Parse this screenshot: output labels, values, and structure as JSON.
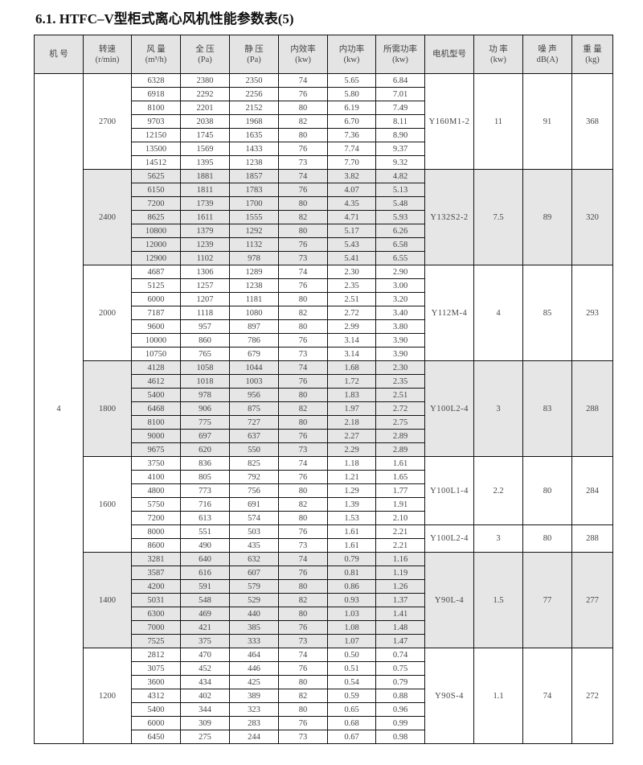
{
  "title": "6.1. HTFC–V型柜式离心风机性能参数表(5)",
  "headers": [
    [
      "机  号",
      ""
    ],
    [
      "转速",
      "(r/min)"
    ],
    [
      "风  量",
      "(m³/h)"
    ],
    [
      "全  压",
      "(Pa)"
    ],
    [
      "静  压",
      "(Pa)"
    ],
    [
      "内效率",
      "(kw)"
    ],
    [
      "内功率",
      "(kw)"
    ],
    [
      "所需功率",
      "(kw)"
    ],
    [
      "电机型号",
      ""
    ],
    [
      "功  率",
      "(kw)"
    ],
    [
      "噪  声",
      "dB(A)"
    ],
    [
      "重  量",
      "(kg)"
    ]
  ],
  "machine_no": "4",
  "shaded_color": "#e6e6e6",
  "groups": [
    {
      "speed": "2700",
      "shaded": false,
      "rows": [
        [
          "6328",
          "2380",
          "2350",
          "74",
          "5.65",
          "6.84"
        ],
        [
          "6918",
          "2292",
          "2256",
          "76",
          "5.80",
          "7.01"
        ],
        [
          "8100",
          "2201",
          "2152",
          "80",
          "6.19",
          "7.49"
        ],
        [
          "9703",
          "2038",
          "1968",
          "82",
          "6.70",
          "8.11"
        ],
        [
          "12150",
          "1745",
          "1635",
          "80",
          "7.36",
          "8.90"
        ],
        [
          "13500",
          "1569",
          "1433",
          "76",
          "7.74",
          "9.37"
        ],
        [
          "14512",
          "1395",
          "1238",
          "73",
          "7.70",
          "9.32"
        ]
      ],
      "motors": [
        {
          "span": 7,
          "model": "Y160M1-2",
          "power": "11",
          "noise": "91",
          "weight": "368"
        }
      ]
    },
    {
      "speed": "2400",
      "shaded": true,
      "rows": [
        [
          "5625",
          "1881",
          "1857",
          "74",
          "3.82",
          "4.82"
        ],
        [
          "6150",
          "1811",
          "1783",
          "76",
          "4.07",
          "5.13"
        ],
        [
          "7200",
          "1739",
          "1700",
          "80",
          "4.35",
          "5.48"
        ],
        [
          "8625",
          "1611",
          "1555",
          "82",
          "4.71",
          "5.93"
        ],
        [
          "10800",
          "1379",
          "1292",
          "80",
          "5.17",
          "6.26"
        ],
        [
          "12000",
          "1239",
          "1132",
          "76",
          "5.43",
          "6.58"
        ],
        [
          "12900",
          "1102",
          "978",
          "73",
          "5.41",
          "6.55"
        ]
      ],
      "motors": [
        {
          "span": 7,
          "model": "Y132S2-2",
          "power": "7.5",
          "noise": "89",
          "weight": "320"
        }
      ]
    },
    {
      "speed": "2000",
      "shaded": false,
      "rows": [
        [
          "4687",
          "1306",
          "1289",
          "74",
          "2.30",
          "2.90"
        ],
        [
          "5125",
          "1257",
          "1238",
          "76",
          "2.35",
          "3.00"
        ],
        [
          "6000",
          "1207",
          "1181",
          "80",
          "2.51",
          "3.20"
        ],
        [
          "7187",
          "1118",
          "1080",
          "82",
          "2.72",
          "3.40"
        ],
        [
          "9600",
          "957",
          "897",
          "80",
          "2.99",
          "3.80"
        ],
        [
          "10000",
          "860",
          "786",
          "76",
          "3.14",
          "3.90"
        ],
        [
          "10750",
          "765",
          "679",
          "73",
          "3.14",
          "3.90"
        ]
      ],
      "motors": [
        {
          "span": 7,
          "model": "Y112M-4",
          "power": "4",
          "noise": "85",
          "weight": "293"
        }
      ]
    },
    {
      "speed": "1800",
      "shaded": true,
      "rows": [
        [
          "4128",
          "1058",
          "1044",
          "74",
          "1.68",
          "2.30"
        ],
        [
          "4612",
          "1018",
          "1003",
          "76",
          "1.72",
          "2.35"
        ],
        [
          "5400",
          "978",
          "956",
          "80",
          "1.83",
          "2.51"
        ],
        [
          "6468",
          "906",
          "875",
          "82",
          "1.97",
          "2.72"
        ],
        [
          "8100",
          "775",
          "727",
          "80",
          "2.18",
          "2.75"
        ],
        [
          "9000",
          "697",
          "637",
          "76",
          "2.27",
          "2.89"
        ],
        [
          "9675",
          "620",
          "550",
          "73",
          "2.29",
          "2.89"
        ]
      ],
      "motors": [
        {
          "span": 7,
          "model": "Y100L2-4",
          "power": "3",
          "noise": "83",
          "weight": "288"
        }
      ]
    },
    {
      "speed": "1600",
      "shaded": false,
      "rows": [
        [
          "3750",
          "836",
          "825",
          "74",
          "1.18",
          "1.61"
        ],
        [
          "4100",
          "805",
          "792",
          "76",
          "1.21",
          "1.65"
        ],
        [
          "4800",
          "773",
          "756",
          "80",
          "1.29",
          "1.77"
        ],
        [
          "5750",
          "716",
          "691",
          "82",
          "1.39",
          "1.91"
        ],
        [
          "7200",
          "613",
          "574",
          "80",
          "1.53",
          "2.10"
        ],
        [
          "8000",
          "551",
          "503",
          "76",
          "1.61",
          "2.21"
        ],
        [
          "8600",
          "490",
          "435",
          "73",
          "1.61",
          "2.21"
        ]
      ],
      "motors": [
        {
          "span": 5,
          "model": "Y100L1-4",
          "power": "2.2",
          "noise": "80",
          "weight": "284"
        },
        {
          "span": 2,
          "model": "Y100L2-4",
          "power": "3",
          "noise": "80",
          "weight": "288"
        }
      ]
    },
    {
      "speed": "1400",
      "shaded": true,
      "rows": [
        [
          "3281",
          "640",
          "632",
          "74",
          "0.79",
          "1.16"
        ],
        [
          "3587",
          "616",
          "607",
          "76",
          "0.81",
          "1.19"
        ],
        [
          "4200",
          "591",
          "579",
          "80",
          "0.86",
          "1.26"
        ],
        [
          "5031",
          "548",
          "529",
          "82",
          "0.93",
          "1.37"
        ],
        [
          "6300",
          "469",
          "440",
          "80",
          "1.03",
          "1.41"
        ],
        [
          "7000",
          "421",
          "385",
          "76",
          "1.08",
          "1.48"
        ],
        [
          "7525",
          "375",
          "333",
          "73",
          "1.07",
          "1.47"
        ]
      ],
      "motors": [
        {
          "span": 7,
          "model": "Y90L-4",
          "power": "1.5",
          "noise": "77",
          "weight": "277"
        }
      ]
    },
    {
      "speed": "1200",
      "shaded": false,
      "rows": [
        [
          "2812",
          "470",
          "464",
          "74",
          "0.50",
          "0.74"
        ],
        [
          "3075",
          "452",
          "446",
          "76",
          "0.51",
          "0.75"
        ],
        [
          "3600",
          "434",
          "425",
          "80",
          "0.54",
          "0.79"
        ],
        [
          "4312",
          "402",
          "389",
          "82",
          "0.59",
          "0.88"
        ],
        [
          "5400",
          "344",
          "323",
          "80",
          "0.65",
          "0.96"
        ],
        [
          "6000",
          "309",
          "283",
          "76",
          "0.68",
          "0.99"
        ],
        [
          "6450",
          "275",
          "244",
          "73",
          "0.67",
          "0.98"
        ]
      ],
      "motors": [
        {
          "span": 7,
          "model": "Y90S-4",
          "power": "1.1",
          "noise": "74",
          "weight": "272"
        }
      ]
    }
  ]
}
